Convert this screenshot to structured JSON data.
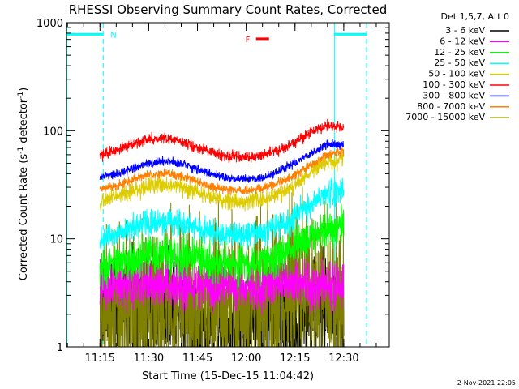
{
  "chart_data": {
    "type": "line",
    "title": "RHESSI Observing Summary Count Rates, Corrected",
    "xlabel": "Start Time (15-Dec-15 11:04:42)",
    "ylabel": "Corrected Count Rate (s⁻¹ detector⁻¹)",
    "y_scale": "log",
    "ylim": [
      1,
      1000
    ],
    "xlim": [
      "11:04:42",
      "12:44:00"
    ],
    "x_ticks": [
      "11:15",
      "11:30",
      "11:45",
      "12:00",
      "12:15",
      "12:30"
    ],
    "y_ticks": [
      "1",
      "10",
      "100",
      "1000"
    ],
    "legend_title": "Det 1,5,7, Att 0",
    "legend_position": "right-outside",
    "data_start": "11:15",
    "data_end": "12:30",
    "x_sample_times": [
      "11:15",
      "11:20",
      "11:25",
      "11:30",
      "11:35",
      "11:40",
      "11:45",
      "11:50",
      "11:55",
      "12:00",
      "12:05",
      "12:10",
      "12:15",
      "12:20",
      "12:25",
      "12:30"
    ],
    "series": [
      {
        "name": "3 - 6 keV",
        "color": "#000000",
        "values": [
          2.2,
          2.3,
          2.3,
          2.4,
          2.3,
          2.2,
          1.7,
          1.5,
          1.6,
          1.6,
          1.9,
          1.9,
          2.0,
          2.3,
          2.4,
          2.4
        ],
        "noise": 0.5
      },
      {
        "name": "6 - 12 keV",
        "color": "#ff00ff",
        "values": [
          3.6,
          3.6,
          3.8,
          3.7,
          3.7,
          3.6,
          3.5,
          3.4,
          3.5,
          3.5,
          3.6,
          3.8,
          3.9,
          3.8,
          3.7,
          3.7
        ],
        "noise": 0.2
      },
      {
        "name": "12 - 25 keV",
        "color": "#00ff00",
        "values": [
          5.5,
          6.0,
          6.5,
          7.0,
          7.2,
          7.0,
          6.5,
          6.0,
          5.8,
          5.8,
          6.0,
          7.0,
          8.5,
          11.0,
          12.5,
          13.0
        ],
        "noise": 0.18
      },
      {
        "name": "25 - 50 keV",
        "color": "#00ffff",
        "values": [
          10.0,
          11.0,
          12.5,
          14.0,
          14.5,
          14.0,
          12.5,
          11.5,
          11.0,
          11.0,
          11.5,
          13.0,
          16.0,
          21.0,
          26.0,
          28.0
        ],
        "noise": 0.12
      },
      {
        "name": "50 - 100 keV",
        "color": "#ddcc00",
        "values": [
          22.0,
          25.0,
          28.0,
          31.0,
          32.0,
          30.0,
          27.0,
          24.0,
          22.5,
          22.0,
          23.0,
          26.0,
          32.0,
          42.0,
          52.0,
          55.0
        ],
        "noise": 0.08
      },
      {
        "name": "100 - 300 keV",
        "color": "#ff0000",
        "values": [
          60.0,
          66.0,
          75.0,
          82.0,
          85.0,
          80.0,
          70.0,
          62.0,
          58.0,
          57.0,
          59.0,
          66.0,
          78.0,
          98.0,
          112.0,
          108.0
        ],
        "noise": 0.05
      },
      {
        "name": "300 - 800 keV",
        "color": "#0000ff",
        "values": [
          37.0,
          40.0,
          45.0,
          50.0,
          52.0,
          50.0,
          44.0,
          39.0,
          36.0,
          36.0,
          37.0,
          42.0,
          50.0,
          62.0,
          74.0,
          75.0
        ],
        "noise": 0.04
      },
      {
        "name": "800 - 7000 keV",
        "color": "#ff8000",
        "values": [
          29.0,
          31.0,
          35.0,
          39.0,
          40.0,
          38.0,
          34.0,
          30.0,
          28.5,
          28.0,
          29.0,
          33.0,
          39.0,
          49.0,
          60.0,
          65.0
        ],
        "noise": 0.04
      },
      {
        "name": "7000 - 15000 keV",
        "color": "#808000",
        "values": [
          1.7,
          1.9,
          2.1,
          2.3,
          2.5,
          2.6,
          2.4,
          2.3,
          2.5,
          2.6,
          2.8,
          3.0,
          3.2,
          3.3,
          3.4,
          3.5
        ],
        "noise": 0.8
      }
    ],
    "overlays": {
      "night_label": "N",
      "night_color": "#00ffff",
      "night_level": 780,
      "night_segments": [
        [
          "11:04:42",
          "11:16:00"
        ],
        [
          "12:27:00",
          "12:37:00"
        ]
      ],
      "night_boundaries_solid": [
        "11:04:42",
        "12:27:00"
      ],
      "night_boundaries_dashed": [
        "11:16:00",
        "12:37:00"
      ],
      "flare_label": "F",
      "flare_color": "#ff0000",
      "flare_level": 710,
      "flare_segment": [
        "12:03:00",
        "12:07:00"
      ]
    }
  },
  "footer": {
    "date_stamp": "2-Nov-2021 22:05"
  }
}
